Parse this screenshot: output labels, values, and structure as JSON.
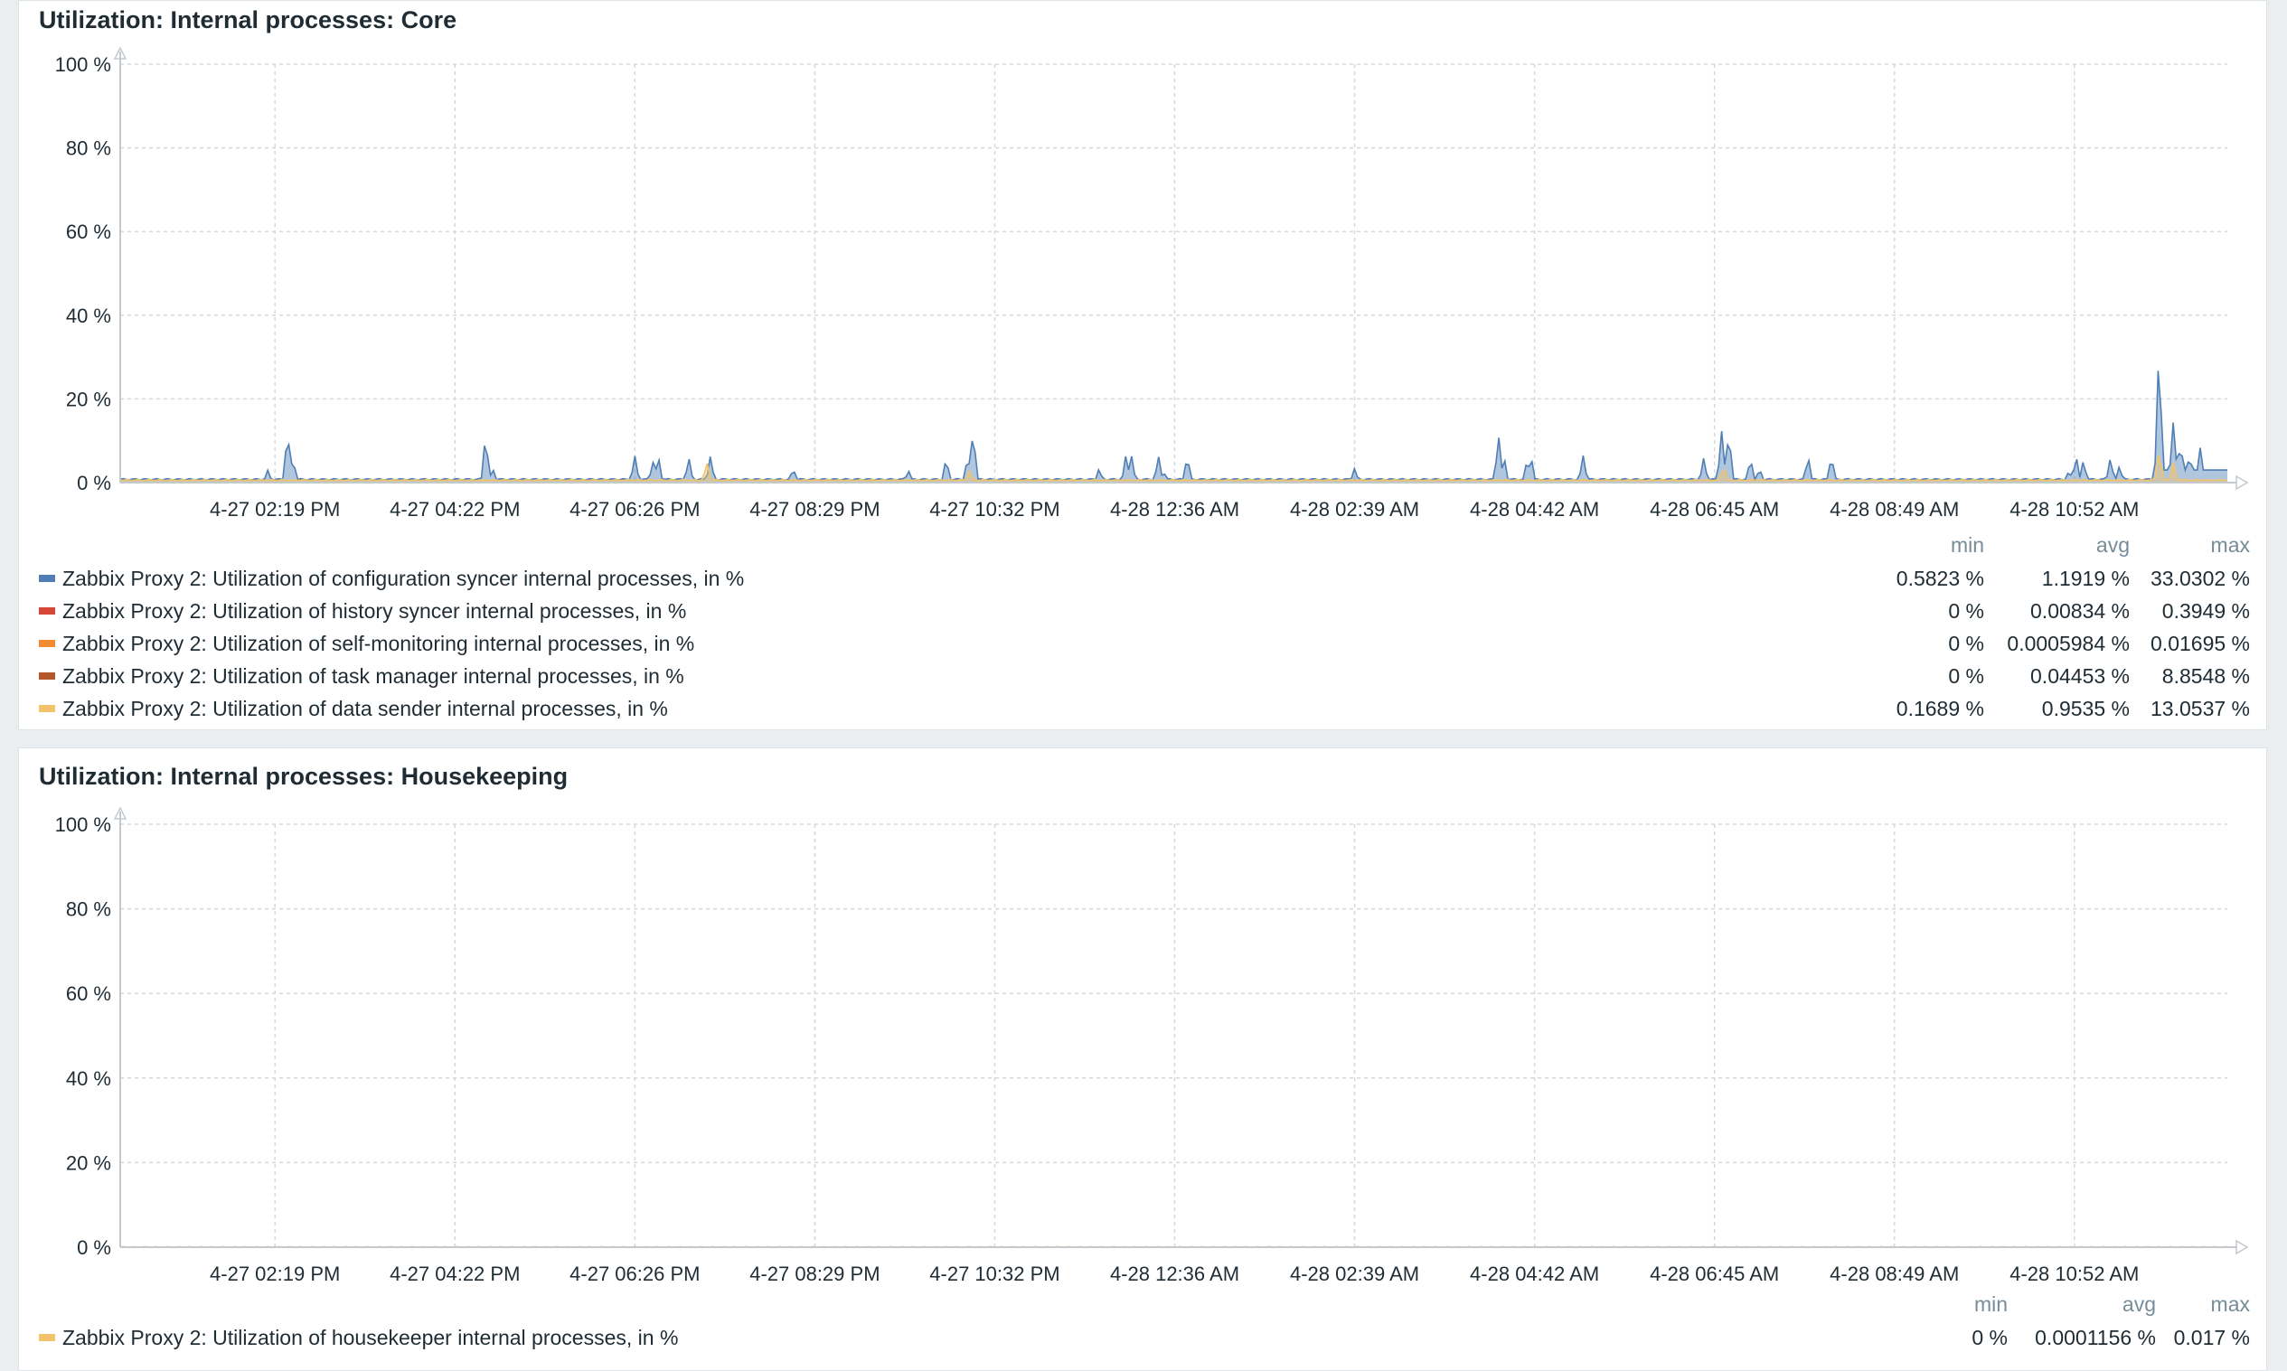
{
  "colors": {
    "grid": "#d5d9dc",
    "axis": "#c3c9cd",
    "tick_text": "#1f2c33",
    "config_syncer": "#4f7fb5",
    "history_syncer": "#d64535",
    "self_monitoring": "#f28b30",
    "task_manager": "#b5562a",
    "data_sender": "#f1c36a",
    "housekeeper": "#f1c36a"
  },
  "legend_headers": {
    "min": "min",
    "avg": "avg",
    "max": "max"
  },
  "chart_data": [
    {
      "type": "area",
      "title": "Utilization: Internal processes: Core",
      "ylim": [
        0,
        100
      ],
      "y_ticks": [
        "0 %",
        "20 %",
        "40 %",
        "60 %",
        "80 %",
        "100 %"
      ],
      "x_ticks": [
        "4-27 02:19 PM",
        "4-27 04:22 PM",
        "4-27 06:26 PM",
        "4-27 08:29 PM",
        "4-27 10:32 PM",
        "4-28 12:36 AM",
        "4-28 02:39 AM",
        "4-28 04:42 AM",
        "4-28 06:45 AM",
        "4-28 08:49 AM",
        "4-28 10:52 AM"
      ],
      "x_range_ticks": [
        -0.86,
        10.85
      ],
      "grid": true,
      "legend_position": "bottom",
      "series": [
        {
          "name": "Zabbix Proxy 2: Utilization of configuration syncer internal processes, in %",
          "color": "#4f7fb5",
          "min": "0.5823 %",
          "avg": "1.1919 %",
          "max": "33.0302 %",
          "baseline": 0.8,
          "spikes": [
            [
              -0.04,
              3
            ],
            [
              0.07,
              12.5
            ],
            [
              0.1,
              6
            ],
            [
              1.17,
              11.5
            ],
            [
              1.21,
              3.5
            ],
            [
              2.0,
              6.5
            ],
            [
              2.1,
              5
            ],
            [
              2.13,
              6.5
            ],
            [
              2.3,
              6
            ],
            [
              2.42,
              6.5
            ],
            [
              2.88,
              3.5
            ],
            [
              3.52,
              3
            ],
            [
              3.73,
              6
            ],
            [
              3.85,
              6.5
            ],
            [
              3.88,
              13
            ],
            [
              4.58,
              3.5
            ],
            [
              4.73,
              7
            ],
            [
              4.76,
              6.5
            ],
            [
              4.91,
              6.5
            ],
            [
              4.94,
              2.5
            ],
            [
              5.07,
              6.5
            ],
            [
              6.0,
              3.5
            ],
            [
              6.8,
              11.5
            ],
            [
              6.83,
              6.5
            ],
            [
              6.96,
              6
            ],
            [
              6.98,
              6.5
            ],
            [
              7.27,
              6.5
            ],
            [
              7.94,
              6
            ],
            [
              8.04,
              12.5
            ],
            [
              8.08,
              12.5
            ],
            [
              8.2,
              6
            ],
            [
              8.25,
              3.5
            ],
            [
              8.52,
              6.5
            ],
            [
              8.65,
              6.5
            ],
            [
              9.97,
              3
            ],
            [
              10.01,
              6.5
            ],
            [
              10.05,
              5.5
            ],
            [
              10.2,
              6
            ],
            [
              10.25,
              4
            ],
            [
              10.47,
              33
            ],
            [
              10.55,
              15
            ],
            [
              10.59,
              10
            ],
            [
              10.64,
              7
            ],
            [
              10.7,
              8.5
            ]
          ],
          "tail": {
            "from": 10.44,
            "level": 3
          }
        },
        {
          "name": "Zabbix Proxy 2: Utilization of history syncer internal processes, in %",
          "color": "#d64535",
          "min": "0 %",
          "avg": "0.00834 %",
          "max": "0.3949 %"
        },
        {
          "name": "Zabbix Proxy 2: Utilization of self-monitoring internal processes, in %",
          "color": "#f28b30",
          "min": "0 %",
          "avg": "0.0005984 %",
          "max": "0.01695 %"
        },
        {
          "name": "Zabbix Proxy 2: Utilization of task manager internal processes, in %",
          "color": "#b5562a",
          "min": "0 %",
          "avg": "0.04453 %",
          "max": "8.8548 %"
        },
        {
          "name": "Zabbix Proxy 2: Utilization of data sender internal processes, in %",
          "color": "#f1c36a",
          "min": "0.1689 %",
          "avg": "0.9535 %",
          "max": "13.0537 %",
          "baseline": 0.6,
          "spikes": [
            [
              2.4,
              5
            ],
            [
              3.86,
              3
            ],
            [
              8.05,
              4
            ],
            [
              10.47,
              8
            ],
            [
              10.55,
              5
            ]
          ]
        }
      ]
    },
    {
      "type": "area",
      "title": "Utilization: Internal processes: Housekeeping",
      "ylim": [
        0,
        100
      ],
      "y_ticks": [
        "0 %",
        "20 %",
        "40 %",
        "60 %",
        "80 %",
        "100 %"
      ],
      "x_ticks": [
        "4-27 02:19 PM",
        "4-27 04:22 PM",
        "4-27 06:26 PM",
        "4-27 08:29 PM",
        "4-27 10:32 PM",
        "4-28 12:36 AM",
        "4-28 02:39 AM",
        "4-28 04:42 AM",
        "4-28 06:45 AM",
        "4-28 08:49 AM",
        "4-28 10:52 AM"
      ],
      "x_range_ticks": [
        -0.86,
        10.85
      ],
      "grid": true,
      "legend_position": "bottom",
      "series": [
        {
          "name": "Zabbix Proxy 2: Utilization of housekeeper internal processes, in %",
          "color": "#f1c36a",
          "min": "0 %",
          "avg": "0.0001156 %",
          "max": "0.017 %",
          "baseline": 0.0
        }
      ]
    }
  ]
}
